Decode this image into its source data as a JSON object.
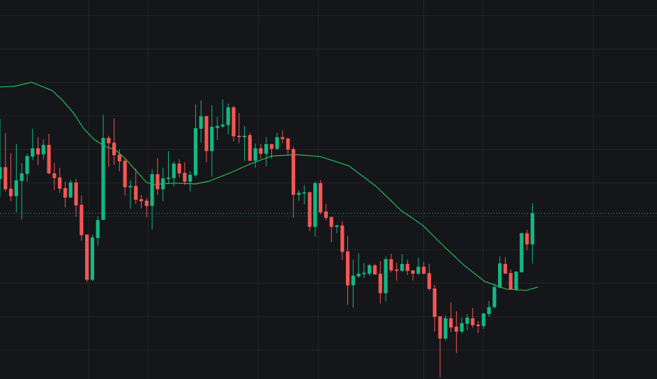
{
  "chart_data": {
    "type": "candlestick",
    "title": "",
    "xlabel": "",
    "ylabel": "",
    "ylim": [
      0,
      136
    ],
    "grid": true,
    "legend": "none",
    "colors": {
      "background": "#151619",
      "grid": "#222428",
      "up": "#13b882",
      "down": "#f55656",
      "moving_average": "#1fc25c",
      "last_price_line": "#13b882"
    },
    "candles": [
      [
        71.8,
        93.3,
        65.3,
        76
      ],
      [
        76,
        88.3,
        67.3,
        68.1
      ],
      [
        68.3,
        81,
        63.8,
        65.6
      ],
      [
        65.6,
        84.3,
        59.8,
        71.3
      ],
      [
        71.1,
        77.5,
        57.3,
        73.8
      ],
      [
        73.6,
        80.8,
        70.8,
        80
      ],
      [
        79.8,
        89.8,
        78.6,
        82.8
      ],
      [
        82.8,
        86.8,
        76.8,
        80.6
      ],
      [
        80.6,
        86,
        78.8,
        84
      ],
      [
        84,
        88,
        73.5,
        73.8
      ],
      [
        73.8,
        77.5,
        67.8,
        72.1
      ],
      [
        72.3,
        75.8,
        66.8,
        68.3
      ],
      [
        68.5,
        70.8,
        61.6,
        65.1
      ],
      [
        65.1,
        71.5,
        65.1,
        70.5
      ],
      [
        70.5,
        71.8,
        58.3,
        62.3
      ],
      [
        62.5,
        65.8,
        49.6,
        51.6
      ],
      [
        51.8,
        52,
        34.8,
        35.6
      ],
      [
        35.6,
        51.8,
        35.1,
        50.8
      ],
      [
        50.6,
        58.3,
        47.8,
        57
      ],
      [
        57.1,
        94.8,
        57.1,
        86.5
      ],
      [
        86.5,
        87.3,
        76.1,
        84.6
      ],
      [
        84.8,
        93.5,
        76.8,
        80.3
      ],
      [
        80.5,
        82.5,
        74.6,
        78.1
      ],
      [
        78.3,
        79.3,
        65.8,
        68.8
      ],
      [
        68.8,
        71.3,
        61.1,
        69.3
      ],
      [
        69.3,
        75.5,
        62.8,
        64.3
      ],
      [
        64.5,
        66,
        61.3,
        63.8
      ],
      [
        64,
        65,
        58.1,
        62.1
      ],
      [
        62.1,
        75.3,
        53.6,
        73.5
      ],
      [
        73.5,
        79.3,
        66.1,
        68.1
      ],
      [
        68.1,
        75.8,
        63.8,
        72
      ],
      [
        71.8,
        81.8,
        70.1,
        72.3
      ],
      [
        72.1,
        78,
        69.1,
        77.3
      ],
      [
        77.3,
        78.8,
        72.3,
        73.8
      ],
      [
        74,
        77.8,
        69.6,
        70.8
      ],
      [
        70.8,
        74.5,
        67.3,
        73.3
      ],
      [
        73.1,
        98.5,
        72.6,
        90
      ],
      [
        89.8,
        100,
        84.8,
        94.3
      ],
      [
        94.3,
        94.5,
        77.8,
        81.8
      ],
      [
        81.8,
        98.3,
        72.6,
        90.5
      ],
      [
        90.1,
        94,
        85.8,
        90.8
      ],
      [
        90.6,
        100.3,
        90.1,
        91.3
      ],
      [
        91.1,
        98.8,
        87.8,
        97.5
      ],
      [
        97.5,
        98,
        85.3,
        87.1
      ],
      [
        87.3,
        95.5,
        84.6,
        86.8
      ],
      [
        86.8,
        90.8,
        78.3,
        87.3
      ],
      [
        87.5,
        88.3,
        78.3,
        78.3
      ],
      [
        78.3,
        84.5,
        75.8,
        82.8
      ],
      [
        82.8,
        84.3,
        79.1,
        80.8
      ],
      [
        80.8,
        86.8,
        76.3,
        84.3
      ],
      [
        84.3,
        84.3,
        79.1,
        82.6
      ],
      [
        82.6,
        88.3,
        82.1,
        86.8
      ],
      [
        86.8,
        89.3,
        84.6,
        86.1
      ],
      [
        86.3,
        86.5,
        80.6,
        82.3
      ],
      [
        82.5,
        83.3,
        57.8,
        66.1
      ],
      [
        66.1,
        67.8,
        63.8,
        66.8
      ],
      [
        66.6,
        69.5,
        62.6,
        67
      ],
      [
        67,
        67.3,
        53.1,
        54.6
      ],
      [
        54.6,
        70.8,
        51.1,
        70.3
      ],
      [
        70.3,
        71.3,
        59.1,
        59.8
      ],
      [
        60.1,
        62.8,
        57.1,
        57.8
      ],
      [
        58.1,
        58.3,
        49.1,
        54.6
      ],
      [
        54.6,
        55.3,
        52.3,
        55.1
      ],
      [
        55.1,
        56.6,
        42.8,
        45.6
      ],
      [
        45.8,
        51.3,
        26.6,
        33.6
      ],
      [
        33.6,
        42.8,
        25.6,
        37.1
      ],
      [
        36.8,
        45.1,
        36.3,
        37.8
      ],
      [
        37.6,
        41.6,
        36.3,
        38.1
      ],
      [
        37.8,
        41.3,
        37.1,
        40.8
      ],
      [
        40.8,
        41.3,
        37.5,
        37.5
      ],
      [
        37.8,
        42.3,
        27.1,
        30.8
      ],
      [
        30.8,
        44,
        27.8,
        43
      ],
      [
        43,
        45,
        38.3,
        39
      ],
      [
        39.3,
        41.8,
        35.3,
        38.8
      ],
      [
        38.8,
        44.8,
        38.5,
        41.3
      ],
      [
        41.3,
        42.8,
        37.3,
        38.8
      ],
      [
        39,
        39,
        35.3,
        37.8
      ],
      [
        37.8,
        43.5,
        37.3,
        40.3
      ],
      [
        40.3,
        42,
        37.5,
        37.8
      ],
      [
        38,
        41.3,
        31.8,
        32.3
      ],
      [
        32.5,
        33.8,
        17,
        22.3
      ],
      [
        22.5,
        22.5,
        0.6,
        14.5
      ],
      [
        14.5,
        22.8,
        13.8,
        21.8
      ],
      [
        21.8,
        27.5,
        16.8,
        18.5
      ],
      [
        18.8,
        24.3,
        9.3,
        17
      ],
      [
        17,
        22,
        16.3,
        20
      ],
      [
        19.8,
        23.3,
        17.5,
        22
      ],
      [
        21.8,
        25.5,
        18.3,
        19.3
      ],
      [
        19.5,
        20.8,
        16.5,
        19
      ],
      [
        19,
        23.8,
        18,
        23.5
      ],
      [
        23.3,
        28,
        22.3,
        25.8
      ],
      [
        25.8,
        34.3,
        25.3,
        33
      ],
      [
        32.8,
        44,
        32.5,
        41.5
      ],
      [
        41.3,
        43.8,
        37.8,
        37.8
      ],
      [
        38,
        39.3,
        32,
        32
      ],
      [
        32,
        38.8,
        31.5,
        38.5
      ],
      [
        38.3,
        52.5,
        38.3,
        52.3
      ],
      [
        52.3,
        53.5,
        46.3,
        48.3
      ],
      [
        48.3,
        63,
        41.5,
        59.5
      ]
    ],
    "candle_fields": [
      "open",
      "high",
      "low",
      "close"
    ],
    "moving_average": [
      [
        1,
        104.8
      ],
      [
        3.6,
        105
      ],
      [
        6.8,
        106.5
      ],
      [
        10.6,
        103.5
      ],
      [
        12.6,
        99.8
      ],
      [
        14.5,
        95.5
      ],
      [
        16.4,
        89.8
      ],
      [
        18.3,
        86
      ],
      [
        20.3,
        83.5
      ],
      [
        22.2,
        82.3
      ],
      [
        24.1,
        79
      ],
      [
        26,
        74.8
      ],
      [
        28,
        70.5
      ],
      [
        29.2,
        69.8
      ],
      [
        33.1,
        70.3
      ],
      [
        37,
        70
      ],
      [
        39.5,
        71
      ],
      [
        43.4,
        74
      ],
      [
        47.2,
        77.3
      ],
      [
        51,
        80
      ],
      [
        55.6,
        80.5
      ],
      [
        60,
        79.8
      ],
      [
        65.2,
        76.5
      ],
      [
        70.3,
        69
      ],
      [
        74.8,
        60.5
      ],
      [
        78.7,
        55.3
      ],
      [
        82.5,
        48
      ],
      [
        86.4,
        40.8
      ],
      [
        90.2,
        35
      ],
      [
        94.1,
        32.3
      ],
      [
        97.9,
        31.8
      ],
      [
        100,
        33
      ]
    ],
    "last_price": 59.5
  }
}
